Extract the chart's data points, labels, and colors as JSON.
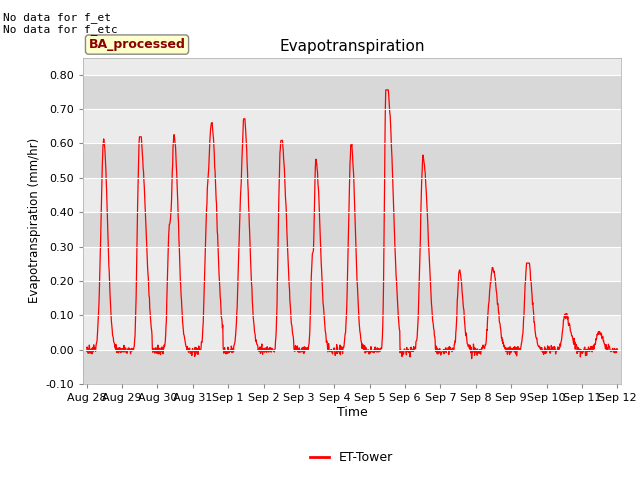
{
  "title": "Evapotranspiration",
  "ylabel": "Evapotranspiration (mm/hr)",
  "xlabel": "Time",
  "ylim": [
    -0.1,
    0.85
  ],
  "yticks": [
    -0.1,
    0.0,
    0.1,
    0.2,
    0.3,
    0.4,
    0.5,
    0.6,
    0.7,
    0.8
  ],
  "xtick_labels": [
    "Aug 28",
    "Aug 29",
    "Aug 30",
    "Aug 31",
    "Sep 1",
    "Sep 2",
    "Sep 3",
    "Sep 4",
    "Sep 5",
    "Sep 6",
    "Sep 7",
    "Sep 8",
    "Sep 9",
    "Sep 10",
    "Sep 11",
    "Sep 12"
  ],
  "annotation1": "No data for f_et",
  "annotation2": "No data for f_etc",
  "legend_box_label": "BA_processed",
  "legend_label": "ET-Tower",
  "line_color": "#ff0000",
  "bg_color_light": "#ebebeb",
  "bg_color_dark": "#d8d8d8",
  "fig_bg_color": "#ffffff",
  "peak_values": [
    0.61,
    0.59,
    0.62,
    0.65,
    0.64,
    0.58,
    0.55,
    0.6,
    0.72,
    0.56,
    0.23,
    0.23,
    0.24,
    0.1,
    0.05
  ],
  "n_days": 15
}
